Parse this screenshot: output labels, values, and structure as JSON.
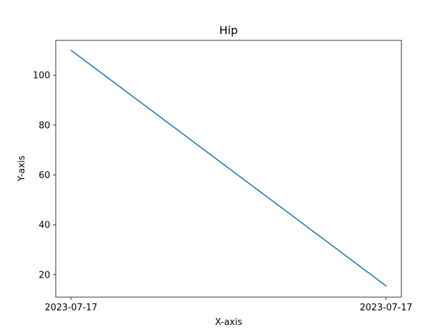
{
  "chart_data": {
    "type": "line",
    "title": "Hip",
    "xlabel": "X-axis",
    "ylabel": "Y-axis",
    "x_tick_labels": [
      "2023-07-17",
      "2023-07-17"
    ],
    "y_ticks": [
      20,
      40,
      60,
      80,
      100
    ],
    "ylim": [
      11,
      114
    ],
    "grid": false,
    "series": [
      {
        "x": [
          "2023-07-17",
          "2023-07-17"
        ],
        "values": [
          110,
          15.5
        ],
        "color": "#1f77b4"
      }
    ]
  }
}
